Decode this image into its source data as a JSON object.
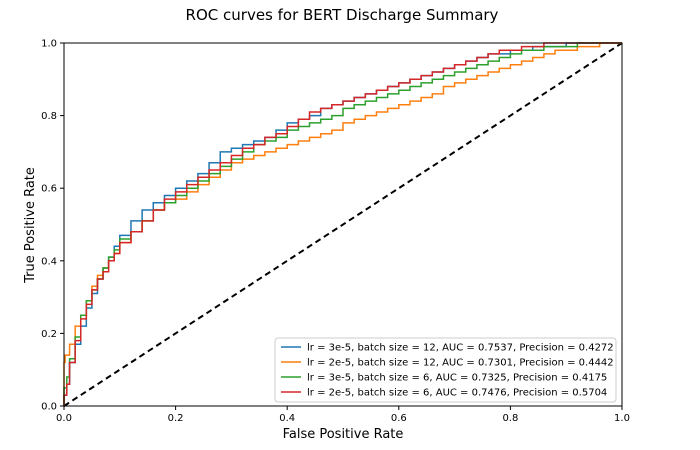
{
  "chart_data": {
    "type": "line",
    "title": "ROC curves for BERT Discharge Summary",
    "xlabel": "False Positive Rate",
    "ylabel": "True Positive Rate",
    "xlim": [
      0.0,
      1.0
    ],
    "ylim": [
      0.0,
      1.0
    ],
    "xticks": [
      0.0,
      0.2,
      0.4,
      0.6,
      0.8,
      1.0
    ],
    "yticks": [
      0.0,
      0.2,
      0.4,
      0.6,
      0.8,
      1.0
    ],
    "xtick_labels": [
      "0.0",
      "0.2",
      "0.4",
      "0.6",
      "0.8",
      "1.0"
    ],
    "ytick_labels": [
      "0.0",
      "0.2",
      "0.4",
      "0.6",
      "0.8",
      "1.0"
    ],
    "grid": false,
    "legend_position": "lower-right",
    "diagonal": {
      "style": "dashed",
      "color": "#000000",
      "x": [
        0,
        1
      ],
      "y": [
        0,
        1
      ]
    },
    "series": [
      {
        "name": "lr = 3e-5, batch size = 12, AUC = 0.7537, Precision = 0.4272",
        "color": "#1f77b4",
        "x": [
          0,
          0.005,
          0.01,
          0.02,
          0.03,
          0.04,
          0.05,
          0.06,
          0.07,
          0.08,
          0.09,
          0.1,
          0.12,
          0.14,
          0.16,
          0.18,
          0.2,
          0.22,
          0.24,
          0.26,
          0.28,
          0.3,
          0.32,
          0.34,
          0.36,
          0.38,
          0.4,
          0.42,
          0.44,
          0.46,
          0.48,
          0.5,
          0.52,
          0.54,
          0.56,
          0.58,
          0.6,
          0.62,
          0.64,
          0.66,
          0.68,
          0.7,
          0.72,
          0.74,
          0.76,
          0.78,
          0.8,
          0.82,
          0.84,
          0.86,
          0.88,
          0.9,
          0.92,
          0.94,
          0.96,
          0.98,
          1.0
        ],
        "y": [
          0,
          0.03,
          0.06,
          0.12,
          0.17,
          0.22,
          0.27,
          0.31,
          0.35,
          0.38,
          0.41,
          0.44,
          0.47,
          0.51,
          0.54,
          0.56,
          0.58,
          0.6,
          0.62,
          0.64,
          0.67,
          0.7,
          0.71,
          0.72,
          0.73,
          0.74,
          0.76,
          0.78,
          0.79,
          0.8,
          0.82,
          0.83,
          0.84,
          0.85,
          0.86,
          0.87,
          0.88,
          0.89,
          0.9,
          0.91,
          0.92,
          0.93,
          0.94,
          0.95,
          0.96,
          0.97,
          0.97,
          0.98,
          0.98,
          0.99,
          0.99,
          0.99,
          1.0,
          1.0,
          1.0,
          1.0,
          1.0
        ]
      },
      {
        "name": "lr = 2e-5, batch size = 12, AUC = 0.7301, Precision = 0.4442",
        "color": "#ff7f0e",
        "x": [
          0,
          0.002,
          0.01,
          0.02,
          0.03,
          0.04,
          0.05,
          0.06,
          0.07,
          0.08,
          0.09,
          0.1,
          0.12,
          0.14,
          0.16,
          0.18,
          0.2,
          0.22,
          0.24,
          0.26,
          0.28,
          0.3,
          0.32,
          0.34,
          0.36,
          0.38,
          0.4,
          0.42,
          0.44,
          0.46,
          0.48,
          0.5,
          0.52,
          0.54,
          0.56,
          0.58,
          0.6,
          0.62,
          0.64,
          0.66,
          0.68,
          0.7,
          0.72,
          0.74,
          0.76,
          0.78,
          0.8,
          0.82,
          0.84,
          0.86,
          0.88,
          0.9,
          0.92,
          0.94,
          0.96,
          0.98,
          1.0
        ],
        "y": [
          0,
          0.12,
          0.14,
          0.17,
          0.22,
          0.25,
          0.29,
          0.33,
          0.36,
          0.38,
          0.4,
          0.42,
          0.45,
          0.48,
          0.51,
          0.54,
          0.56,
          0.57,
          0.59,
          0.61,
          0.63,
          0.65,
          0.67,
          0.68,
          0.69,
          0.7,
          0.71,
          0.72,
          0.73,
          0.74,
          0.75,
          0.76,
          0.78,
          0.79,
          0.8,
          0.81,
          0.82,
          0.83,
          0.84,
          0.85,
          0.86,
          0.88,
          0.89,
          0.9,
          0.91,
          0.92,
          0.93,
          0.94,
          0.95,
          0.96,
          0.97,
          0.98,
          0.98,
          0.99,
          0.99,
          1.0,
          1.0
        ]
      },
      {
        "name": "lr = 3e-5, batch size = 6, AUC = 0.7325, Precision = 0.4175",
        "color": "#2ca02c",
        "x": [
          0,
          0.005,
          0.01,
          0.02,
          0.03,
          0.04,
          0.05,
          0.06,
          0.07,
          0.08,
          0.09,
          0.1,
          0.12,
          0.14,
          0.16,
          0.18,
          0.2,
          0.22,
          0.24,
          0.26,
          0.28,
          0.3,
          0.32,
          0.34,
          0.36,
          0.38,
          0.4,
          0.42,
          0.44,
          0.46,
          0.48,
          0.5,
          0.52,
          0.54,
          0.56,
          0.58,
          0.6,
          0.62,
          0.64,
          0.66,
          0.68,
          0.7,
          0.72,
          0.74,
          0.76,
          0.78,
          0.8,
          0.82,
          0.84,
          0.86,
          0.88,
          0.9,
          0.92,
          0.94,
          0.96,
          0.98,
          1.0
        ],
        "y": [
          0,
          0.05,
          0.08,
          0.13,
          0.19,
          0.25,
          0.29,
          0.32,
          0.35,
          0.38,
          0.41,
          0.43,
          0.46,
          0.48,
          0.51,
          0.54,
          0.56,
          0.58,
          0.6,
          0.62,
          0.64,
          0.66,
          0.68,
          0.7,
          0.72,
          0.73,
          0.74,
          0.76,
          0.77,
          0.78,
          0.79,
          0.8,
          0.82,
          0.83,
          0.84,
          0.85,
          0.86,
          0.87,
          0.88,
          0.89,
          0.9,
          0.91,
          0.92,
          0.93,
          0.94,
          0.95,
          0.96,
          0.97,
          0.98,
          0.98,
          0.99,
          0.99,
          0.99,
          1.0,
          1.0,
          1.0,
          1.0
        ]
      },
      {
        "name": "lr = 2e-5, batch size = 6, AUC = 0.7476, Precision = 0.5704",
        "color": "#d62728",
        "x": [
          0,
          0.005,
          0.01,
          0.02,
          0.03,
          0.04,
          0.05,
          0.06,
          0.07,
          0.08,
          0.09,
          0.1,
          0.12,
          0.14,
          0.16,
          0.18,
          0.2,
          0.22,
          0.24,
          0.26,
          0.28,
          0.3,
          0.32,
          0.34,
          0.36,
          0.38,
          0.4,
          0.42,
          0.44,
          0.46,
          0.48,
          0.5,
          0.52,
          0.54,
          0.56,
          0.58,
          0.6,
          0.62,
          0.64,
          0.66,
          0.68,
          0.7,
          0.72,
          0.74,
          0.76,
          0.78,
          0.8,
          0.82,
          0.84,
          0.86,
          0.88,
          0.9,
          0.92,
          0.94,
          0.96,
          0.98,
          1.0
        ],
        "y": [
          0,
          0.03,
          0.06,
          0.12,
          0.18,
          0.24,
          0.28,
          0.32,
          0.35,
          0.37,
          0.4,
          0.42,
          0.45,
          0.48,
          0.51,
          0.54,
          0.57,
          0.59,
          0.61,
          0.63,
          0.65,
          0.67,
          0.69,
          0.71,
          0.72,
          0.74,
          0.75,
          0.77,
          0.79,
          0.81,
          0.82,
          0.83,
          0.84,
          0.85,
          0.86,
          0.87,
          0.88,
          0.89,
          0.9,
          0.91,
          0.92,
          0.93,
          0.94,
          0.95,
          0.96,
          0.97,
          0.98,
          0.98,
          0.99,
          0.99,
          1.0,
          1.0,
          1.0,
          1.0,
          1.0,
          1.0,
          1.0
        ]
      }
    ]
  }
}
